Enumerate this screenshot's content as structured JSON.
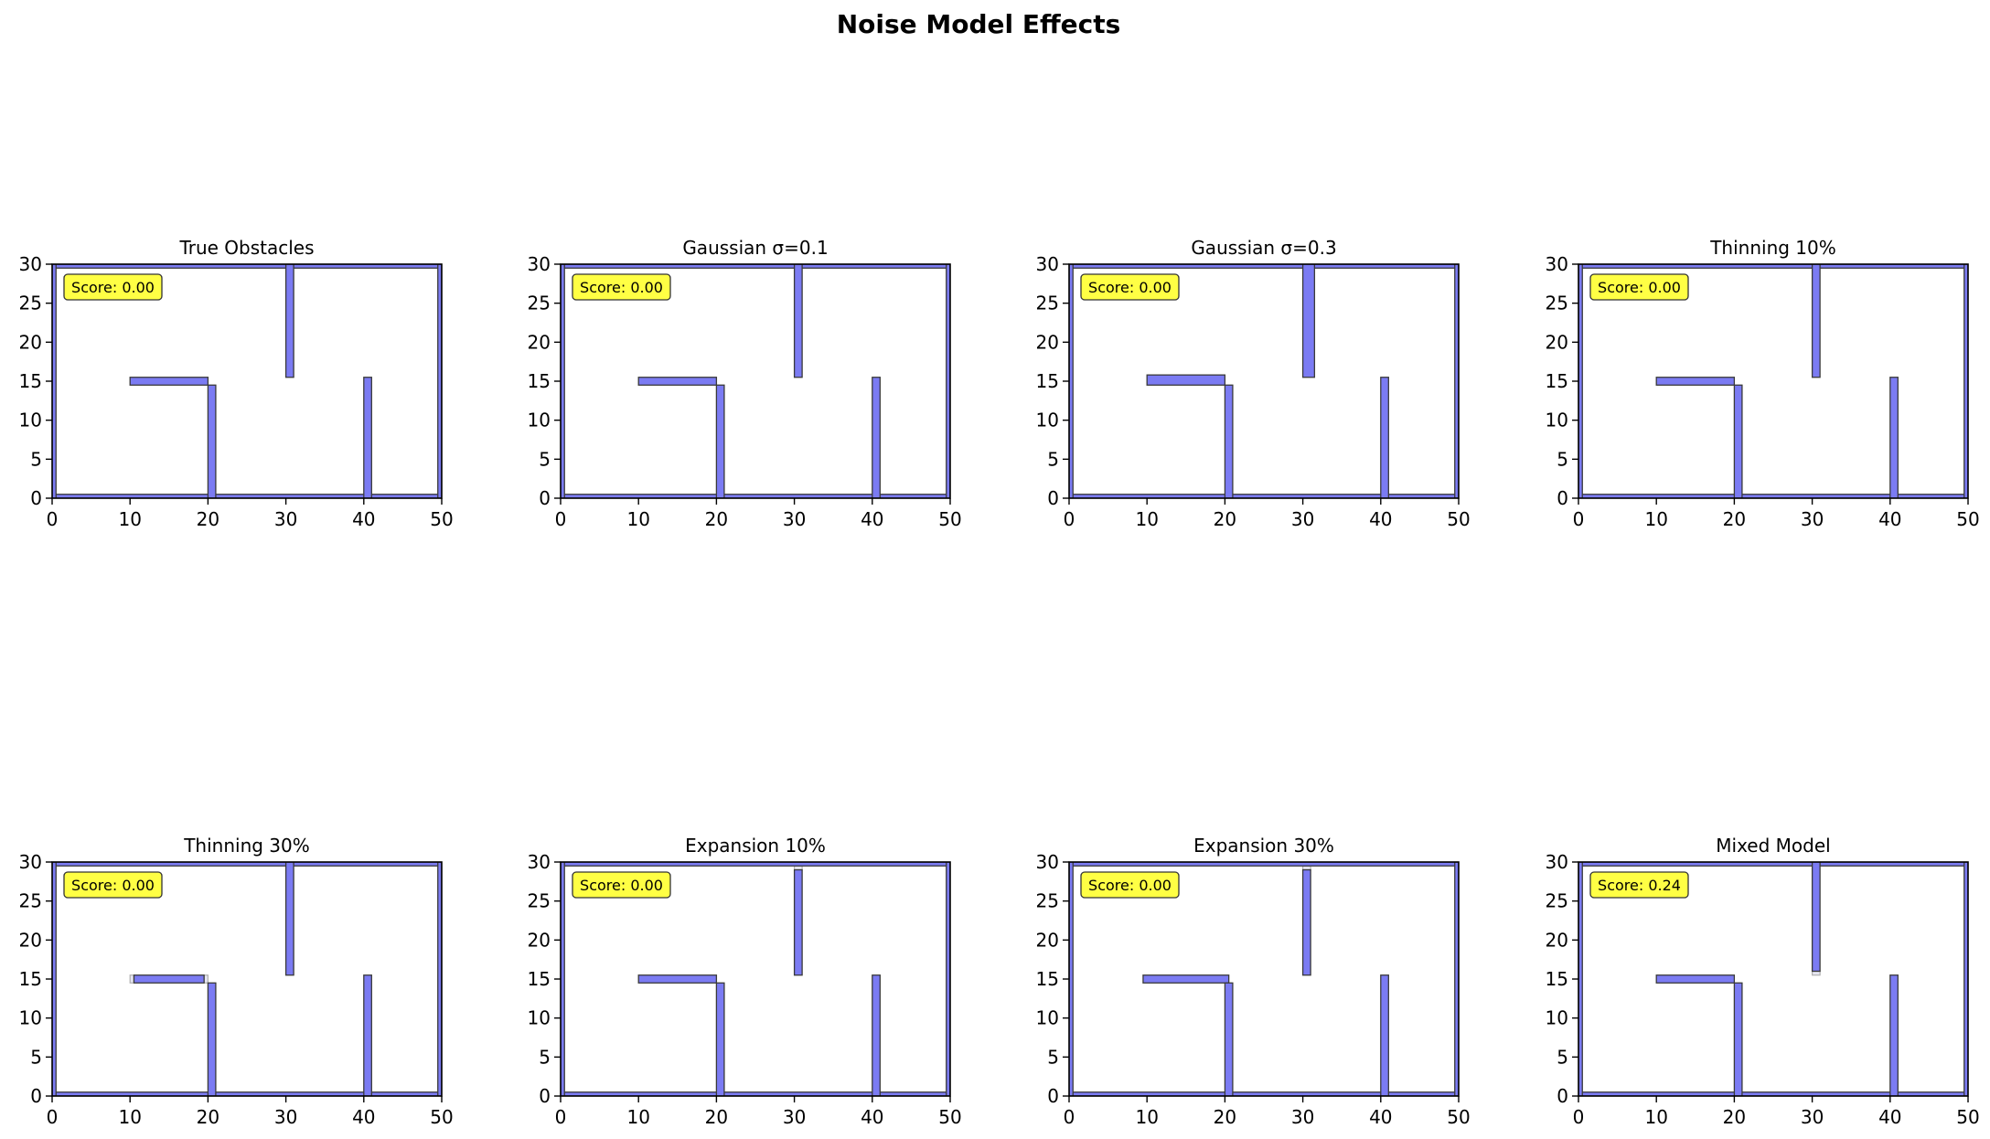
{
  "figure": {
    "suptitle": "Noise Model Effects"
  },
  "colors": {
    "obstacle_fill": "#7b7bf3",
    "obstacle_edge": "#3a3a3a",
    "score_bg": "#ffff44",
    "axis": "#000000"
  },
  "chart_data": [
    {
      "type": "heatmap",
      "title": "True Obstacles",
      "score": "Score: 0.00",
      "xlim": [
        0,
        50
      ],
      "ylim": [
        0,
        30
      ],
      "xticks": [
        "0",
        "10",
        "20",
        "30",
        "40",
        "50"
      ],
      "yticks": [
        "0",
        "5",
        "10",
        "15",
        "20",
        "25",
        "30"
      ],
      "rects": [
        [
          0,
          0,
          50,
          0.5
        ],
        [
          0,
          29.5,
          50,
          30
        ],
        [
          0,
          0,
          0.5,
          30
        ],
        [
          49.5,
          0,
          50,
          30
        ],
        [
          10,
          14.5,
          20,
          15.5
        ],
        [
          20,
          0,
          21,
          14.5
        ],
        [
          30,
          15.5,
          31,
          30
        ],
        [
          40,
          0,
          41,
          15.5
        ]
      ],
      "faint": []
    },
    {
      "type": "heatmap",
      "title": "Gaussian σ=0.1",
      "score": "Score: 0.00",
      "xlim": [
        0,
        50
      ],
      "ylim": [
        0,
        30
      ],
      "xticks": [
        "0",
        "10",
        "20",
        "30",
        "40",
        "50"
      ],
      "yticks": [
        "0",
        "5",
        "10",
        "15",
        "20",
        "25",
        "30"
      ],
      "rects": [
        [
          0,
          0,
          50,
          0.5
        ],
        [
          0,
          29.5,
          50,
          30
        ],
        [
          0,
          0,
          0.5,
          30
        ],
        [
          49.5,
          0,
          50,
          30
        ],
        [
          10,
          14.5,
          20,
          15.5
        ],
        [
          20,
          0,
          21,
          14.5
        ],
        [
          30,
          15.5,
          31,
          30
        ],
        [
          40,
          0,
          41,
          15.5
        ]
      ],
      "faint": []
    },
    {
      "type": "heatmap",
      "title": "Gaussian σ=0.3",
      "score": "Score: 0.00",
      "xlim": [
        0,
        50
      ],
      "ylim": [
        0,
        30
      ],
      "xticks": [
        "0",
        "10",
        "20",
        "30",
        "40",
        "50"
      ],
      "yticks": [
        "0",
        "5",
        "10",
        "15",
        "20",
        "25",
        "30"
      ],
      "rects": [
        [
          0,
          0,
          50,
          0.5
        ],
        [
          0,
          29.5,
          50,
          30
        ],
        [
          0,
          0,
          0.5,
          30
        ],
        [
          49.5,
          0,
          50,
          30
        ],
        [
          10,
          14.5,
          20,
          15.8
        ],
        [
          20,
          0,
          21,
          14.5
        ],
        [
          30,
          15.5,
          31.5,
          30
        ],
        [
          40,
          0,
          41,
          15.5
        ]
      ],
      "faint": []
    },
    {
      "type": "heatmap",
      "title": "Thinning 10%",
      "score": "Score: 0.00",
      "xlim": [
        0,
        50
      ],
      "ylim": [
        0,
        30
      ],
      "xticks": [
        "0",
        "10",
        "20",
        "30",
        "40",
        "50"
      ],
      "yticks": [
        "0",
        "5",
        "10",
        "15",
        "20",
        "25",
        "30"
      ],
      "rects": [
        [
          0,
          0,
          50,
          0.5
        ],
        [
          0,
          29.5,
          50,
          30
        ],
        [
          0,
          0,
          0.5,
          30
        ],
        [
          49.5,
          0,
          50,
          30
        ],
        [
          10,
          14.5,
          20,
          15.5
        ],
        [
          20,
          0,
          21,
          14.5
        ],
        [
          30,
          15.5,
          31,
          30
        ],
        [
          40,
          0,
          41,
          15.5
        ]
      ],
      "faint": []
    },
    {
      "type": "heatmap",
      "title": "Thinning 30%",
      "score": "Score: 0.00",
      "xlim": [
        0,
        50
      ],
      "ylim": [
        0,
        30
      ],
      "xticks": [
        "0",
        "10",
        "20",
        "30",
        "40",
        "50"
      ],
      "yticks": [
        "0",
        "5",
        "10",
        "15",
        "20",
        "25",
        "30"
      ],
      "rects": [
        [
          0,
          0,
          50,
          0.5
        ],
        [
          0,
          29.5,
          50,
          30
        ],
        [
          0,
          0,
          0.5,
          30
        ],
        [
          49.5,
          0,
          50,
          30
        ],
        [
          10.5,
          14.5,
          19.5,
          15.5
        ],
        [
          20,
          0,
          21,
          14.5
        ],
        [
          30,
          15.5,
          31,
          30
        ],
        [
          40,
          0,
          41,
          15.5
        ]
      ],
      "faint": [
        [
          10,
          14.5,
          10.5,
          15.5
        ],
        [
          19.5,
          14.5,
          20,
          15.5
        ]
      ]
    },
    {
      "type": "heatmap",
      "title": "Expansion 10%",
      "score": "Score: 0.00",
      "xlim": [
        0,
        50
      ],
      "ylim": [
        0,
        30
      ],
      "xticks": [
        "0",
        "10",
        "20",
        "30",
        "40",
        "50"
      ],
      "yticks": [
        "0",
        "5",
        "10",
        "15",
        "20",
        "25",
        "30"
      ],
      "rects": [
        [
          0,
          0,
          50,
          0.5
        ],
        [
          0,
          29.5,
          50,
          30
        ],
        [
          0,
          0,
          0.5,
          30
        ],
        [
          49.5,
          0,
          50,
          30
        ],
        [
          10,
          14.5,
          20,
          15.5
        ],
        [
          20,
          0,
          21,
          14.5
        ],
        [
          30,
          15.5,
          31,
          29
        ],
        [
          40,
          0,
          41,
          15.5
        ]
      ],
      "faint": [
        [
          30,
          29,
          31,
          29.5
        ]
      ]
    },
    {
      "type": "heatmap",
      "title": "Expansion 30%",
      "score": "Score: 0.00",
      "xlim": [
        0,
        50
      ],
      "ylim": [
        0,
        30
      ],
      "xticks": [
        "0",
        "10",
        "20",
        "30",
        "40",
        "50"
      ],
      "yticks": [
        "0",
        "5",
        "10",
        "15",
        "20",
        "25",
        "30"
      ],
      "rects": [
        [
          0,
          0,
          50,
          0.5
        ],
        [
          0,
          29.5,
          50,
          30
        ],
        [
          0,
          0,
          0.5,
          30
        ],
        [
          49.5,
          0,
          50,
          30
        ],
        [
          9.5,
          14.5,
          20.5,
          15.5
        ],
        [
          20,
          0,
          21,
          14.5
        ],
        [
          30,
          15.5,
          31,
          29
        ],
        [
          40,
          0,
          41,
          15.5
        ]
      ],
      "faint": [
        [
          30,
          29,
          31,
          29.5
        ]
      ]
    },
    {
      "type": "heatmap",
      "title": "Mixed Model",
      "score": "Score: 0.24",
      "xlim": [
        0,
        50
      ],
      "ylim": [
        0,
        30
      ],
      "xticks": [
        "0",
        "10",
        "20",
        "30",
        "40",
        "50"
      ],
      "yticks": [
        "0",
        "5",
        "10",
        "15",
        "20",
        "25",
        "30"
      ],
      "rects": [
        [
          0,
          0,
          50,
          0.5
        ],
        [
          0,
          29.5,
          50,
          30
        ],
        [
          0,
          0,
          0.5,
          30
        ],
        [
          49.5,
          0,
          50,
          30
        ],
        [
          10,
          14.5,
          20,
          15.5
        ],
        [
          20,
          0,
          21,
          14.5
        ],
        [
          30,
          16,
          31,
          30
        ],
        [
          40,
          0,
          41,
          15.5
        ]
      ],
      "faint": [
        [
          30,
          15.5,
          31,
          16
        ]
      ]
    }
  ]
}
